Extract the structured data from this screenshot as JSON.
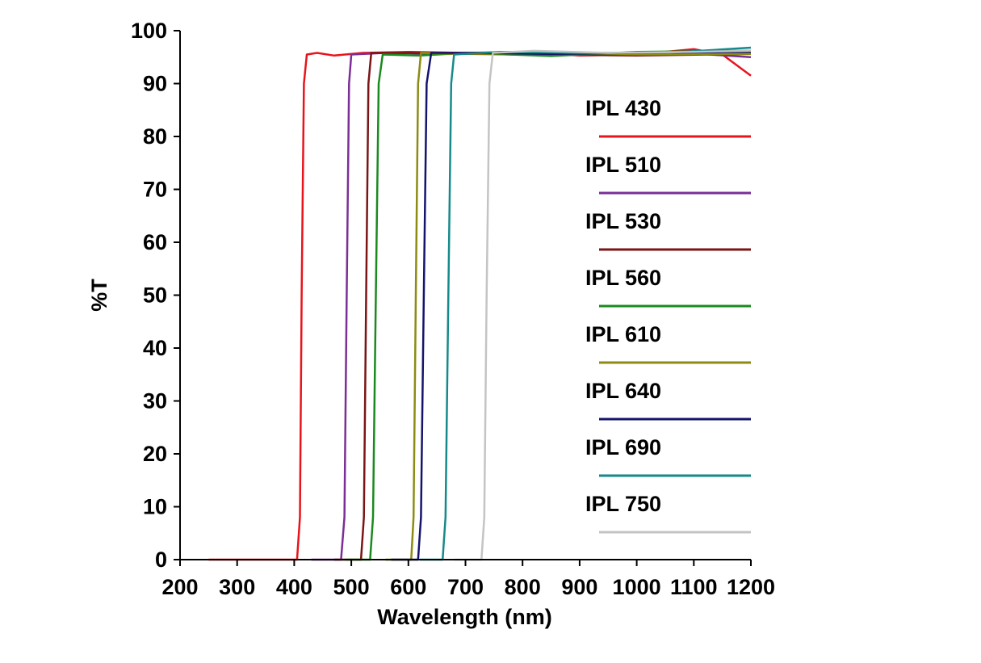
{
  "chart_data": {
    "type": "line",
    "xlabel": "Wavelength (nm)",
    "ylabel": "%T",
    "xlim": [
      200,
      1200
    ],
    "ylim": [
      0,
      100
    ],
    "x_ticks": [
      200,
      300,
      400,
      500,
      600,
      700,
      800,
      900,
      1000,
      1100,
      1200
    ],
    "y_ticks": [
      0,
      10,
      20,
      30,
      40,
      50,
      60,
      70,
      80,
      90,
      100
    ],
    "grid": false,
    "legend_position": "right",
    "series": [
      {
        "name": "IPL 430",
        "color": "#e8141b",
        "points": [
          [
            250,
            0
          ],
          [
            405,
            0
          ],
          [
            410,
            8
          ],
          [
            413,
            50
          ],
          [
            417,
            90
          ],
          [
            422,
            95.5
          ],
          [
            440,
            95.8
          ],
          [
            470,
            95.3
          ],
          [
            520,
            95.8
          ],
          [
            600,
            96.0
          ],
          [
            700,
            95.8
          ],
          [
            800,
            96.0
          ],
          [
            900,
            95.3
          ],
          [
            1000,
            95.5
          ],
          [
            1100,
            96.5
          ],
          [
            1150,
            95.5
          ],
          [
            1200,
            91.5
          ]
        ]
      },
      {
        "name": "IPL 510",
        "color": "#7b2f96",
        "points": [
          [
            430,
            0
          ],
          [
            482,
            0
          ],
          [
            488,
            8
          ],
          [
            492,
            50
          ],
          [
            496,
            90
          ],
          [
            500,
            95.5
          ],
          [
            560,
            95.8
          ],
          [
            650,
            95.6
          ],
          [
            800,
            95.8
          ],
          [
            950,
            95.5
          ],
          [
            1100,
            95.7
          ],
          [
            1200,
            95.0
          ]
        ]
      },
      {
        "name": "IPL 530",
        "color": "#7b1515",
        "points": [
          [
            470,
            0
          ],
          [
            517,
            0
          ],
          [
            522,
            8
          ],
          [
            526,
            50
          ],
          [
            530,
            90
          ],
          [
            535,
            95.8
          ],
          [
            600,
            95.8
          ],
          [
            700,
            95.6
          ],
          [
            850,
            95.5
          ],
          [
            1000,
            95.3
          ],
          [
            1200,
            95.6
          ]
        ]
      },
      {
        "name": "IPL 560",
        "color": "#1a8a1f",
        "points": [
          [
            490,
            0
          ],
          [
            533,
            0
          ],
          [
            538,
            8
          ],
          [
            543,
            50
          ],
          [
            548,
            90
          ],
          [
            555,
            95.5
          ],
          [
            620,
            95.3
          ],
          [
            700,
            95.8
          ],
          [
            850,
            95.2
          ],
          [
            1000,
            96.0
          ],
          [
            1200,
            96.2
          ]
        ]
      },
      {
        "name": "IPL 610",
        "color": "#8c8c14",
        "points": [
          [
            560,
            0
          ],
          [
            605,
            0
          ],
          [
            609,
            8
          ],
          [
            613,
            50
          ],
          [
            617,
            90
          ],
          [
            622,
            95.8
          ],
          [
            700,
            95.6
          ],
          [
            850,
            95.8
          ],
          [
            1000,
            95.5
          ],
          [
            1200,
            95.6
          ]
        ]
      },
      {
        "name": "IPL 640",
        "color": "#14146e",
        "points": [
          [
            570,
            0
          ],
          [
            617,
            0
          ],
          [
            622,
            8
          ],
          [
            627,
            50
          ],
          [
            632,
            90
          ],
          [
            640,
            95.8
          ],
          [
            720,
            95.8
          ],
          [
            850,
            95.6
          ],
          [
            1000,
            95.8
          ],
          [
            1200,
            96.0
          ]
        ]
      },
      {
        "name": "IPL 690",
        "color": "#168a8a",
        "points": [
          [
            620,
            0
          ],
          [
            660,
            0
          ],
          [
            665,
            8
          ],
          [
            670,
            50
          ],
          [
            675,
            90
          ],
          [
            680,
            95.5
          ],
          [
            760,
            96.0
          ],
          [
            900,
            95.8
          ],
          [
            1050,
            95.8
          ],
          [
            1200,
            96.8
          ]
        ]
      },
      {
        "name": "IPL 750",
        "color": "#c4c4c4",
        "points": [
          [
            680,
            0
          ],
          [
            728,
            0
          ],
          [
            733,
            8
          ],
          [
            737,
            50
          ],
          [
            742,
            90
          ],
          [
            748,
            95.8
          ],
          [
            820,
            96.2
          ],
          [
            950,
            95.8
          ],
          [
            1100,
            96.0
          ],
          [
            1200,
            96.2
          ]
        ]
      }
    ]
  }
}
